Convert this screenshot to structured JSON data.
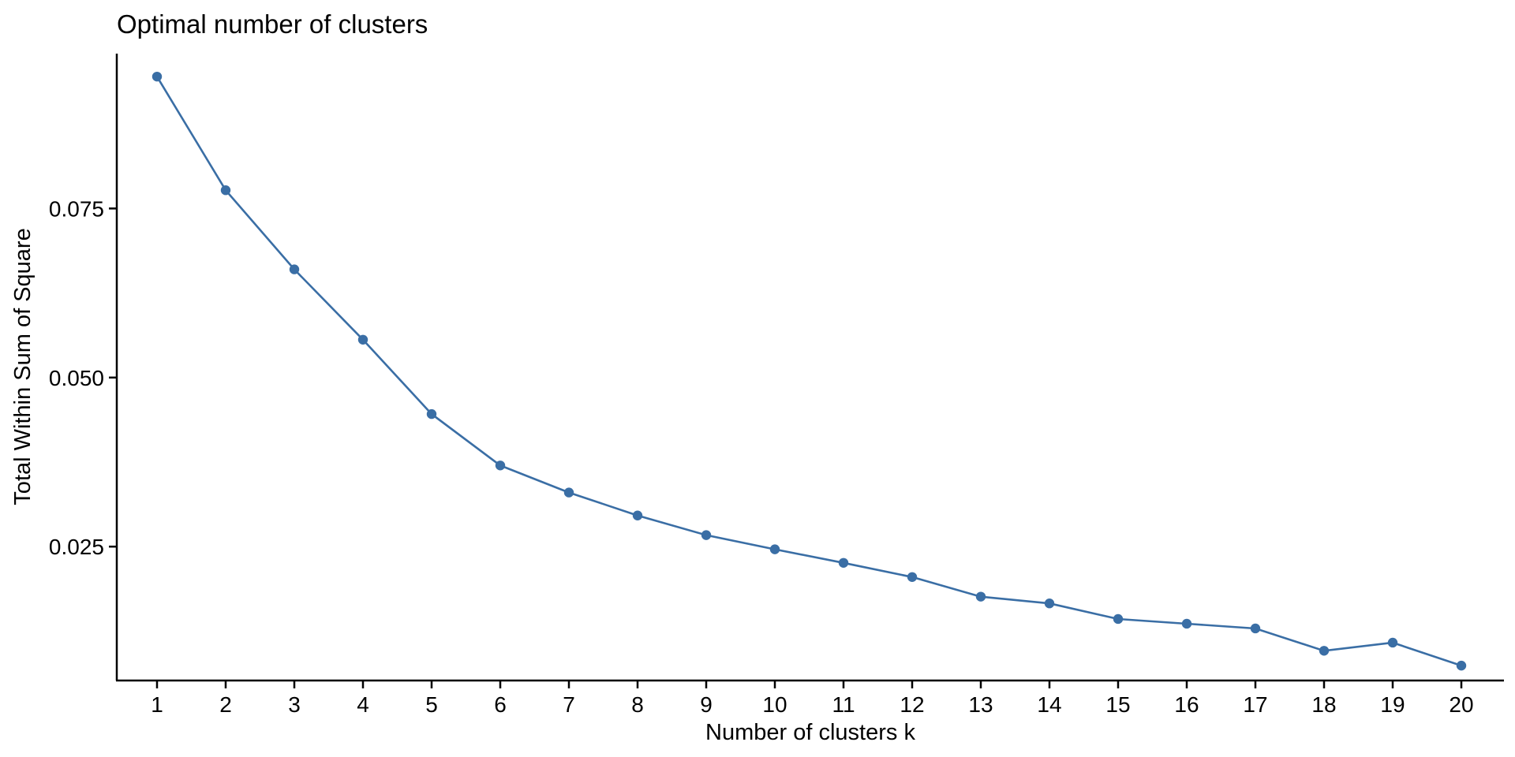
{
  "chart_data": {
    "type": "line",
    "title": "Optimal number of clusters",
    "xlabel": "Number of clusters k",
    "ylabel": "Total Within Sum of Square",
    "x": [
      "1",
      "2",
      "3",
      "4",
      "5",
      "6",
      "7",
      "8",
      "9",
      "10",
      "11",
      "12",
      "13",
      "14",
      "15",
      "16",
      "17",
      "18",
      "19",
      "20"
    ],
    "series": [
      {
        "values": [
          0.0945,
          0.0777,
          0.066,
          0.0556,
          0.0446,
          0.037,
          0.033,
          0.0296,
          0.0267,
          0.0246,
          0.0226,
          0.0205,
          0.0176,
          0.0166,
          0.0143,
          0.0136,
          0.0129,
          0.0096,
          0.0108,
          0.0074
        ],
        "color": "#3a6ea5"
      }
    ],
    "yticks": [
      "0.025",
      "0.050",
      "0.075"
    ],
    "ylim": [
      0.0052,
      0.0979
    ],
    "grid": false,
    "legend": "none"
  }
}
